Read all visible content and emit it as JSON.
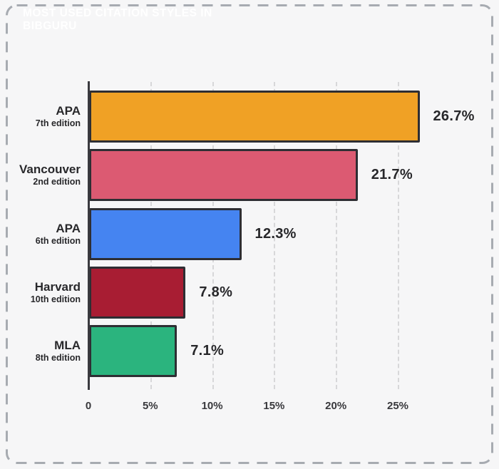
{
  "header": {
    "title": "MOST USED CITATION STYLES IN BIBGURU"
  },
  "colors": {
    "background": "#f6f6f7",
    "banner": "#3f7ec6",
    "dashed_border": "#a7abb1",
    "bar_border": "#2e2e33",
    "gridline": "#d7d7d9",
    "axis_line": "#3a3a3f",
    "text": "#28282b"
  },
  "chart_data": {
    "type": "bar",
    "orientation": "horizontal",
    "title": "MOST USED CITATION STYLES IN BIBGURU",
    "categories": [
      "APA",
      "Vancouver",
      "APA",
      "Harvard",
      "MLA"
    ],
    "category_sublabels": [
      "7th edition",
      "2nd edition",
      "6th edition",
      "10th edition",
      "8th edition"
    ],
    "values": [
      26.7,
      21.7,
      12.3,
      7.8,
      7.1
    ],
    "value_labels": [
      "26.7%",
      "21.7%",
      "12.3%",
      "7.8%",
      "7.1%"
    ],
    "bar_colors": [
      "#f0a125",
      "#dc5a72",
      "#4584f1",
      "#a81d33",
      "#2bb47e"
    ],
    "xlabel": "",
    "ylabel": "",
    "xlim": [
      0,
      27.5
    ],
    "x_ticks": [
      "0",
      "5%",
      "10%",
      "15%",
      "20%",
      "25%"
    ],
    "x_tick_values": [
      0,
      5,
      10,
      15,
      20,
      25
    ],
    "grid": "vertical-dashed",
    "legend": "none"
  }
}
